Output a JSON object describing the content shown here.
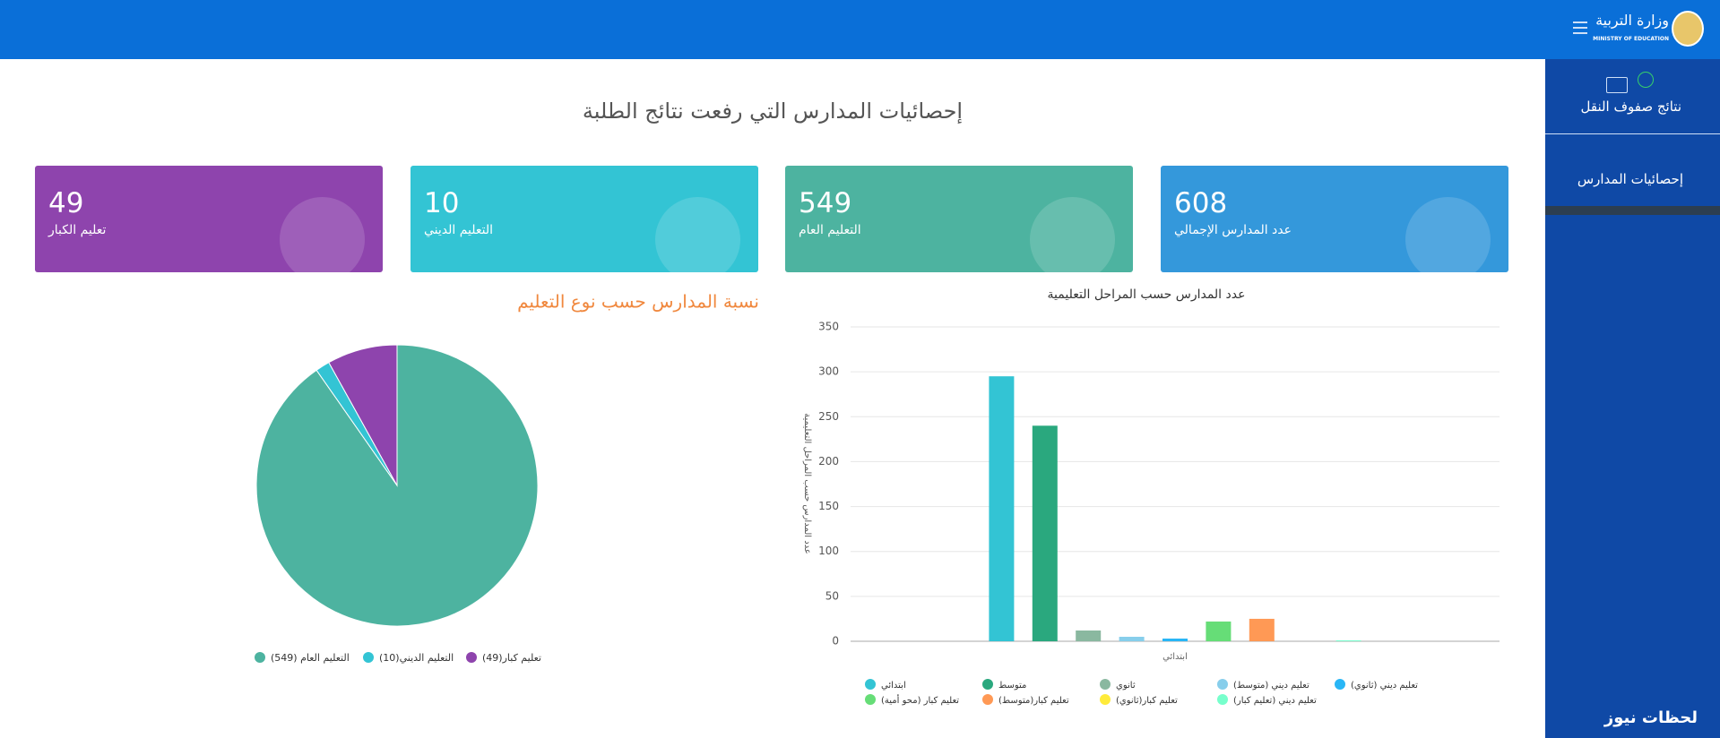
{
  "header": {
    "title": "وزارة التربية",
    "subtitle": "MINISTRY OF EDUCATION"
  },
  "sidebar": {
    "items": [
      "نتائج صفوف النقل",
      "إحصائيات المدارس"
    ]
  },
  "page_title": "إحصائيات المدارس التي رفعت نتائج الطلبة",
  "cards": [
    {
      "value": "608",
      "label": "عدد المدارس الإجمالي"
    },
    {
      "value": "549",
      "label": "التعليم العام"
    },
    {
      "value": "10",
      "label": "التعليم الديني"
    },
    {
      "value": "49",
      "label": "تعليم الكبار"
    }
  ],
  "watermark": "لحظات نيوز",
  "chart_data": [
    {
      "type": "pie",
      "title": "نسبة المدارس حسب نوع التعليم",
      "categories": [
        "التعليم العام (549)",
        "التعليم الديني(10)",
        "تعليم كبار(49)"
      ],
      "values": [
        549,
        10,
        49
      ],
      "colors": [
        "#4db3a0",
        "#33c4d4",
        "#8e44ad"
      ]
    },
    {
      "type": "bar",
      "title": "عدد المدارس حسب المراحل التعليمية",
      "y_label": "عدد المدارس حسب المراحل التعليمية",
      "categories": [
        "ابتدائي"
      ],
      "ylim": [
        0,
        350
      ],
      "yticks": [
        0,
        50,
        100,
        150,
        200,
        250,
        300,
        350
      ],
      "grid": true,
      "series": [
        {
          "name": "ابتدائي",
          "color": "#33c4d4",
          "values": [
            295
          ]
        },
        {
          "name": "متوسط",
          "color": "#2aa87e",
          "values": [
            240
          ]
        },
        {
          "name": "ثانوي",
          "color": "#8ab8a0",
          "values": [
            12
          ]
        },
        {
          "name": "تعليم ديني (متوسط)",
          "color": "#87ceeb",
          "values": [
            5
          ]
        },
        {
          "name": "تعليم ديني (ثانوي)",
          "color": "#29b6f6",
          "values": [
            3
          ]
        },
        {
          "name": "تعليم كبار (محو أمية)",
          "color": "#66dd77",
          "values": [
            22
          ]
        },
        {
          "name": "تعليم كبار(متوسط)",
          "color": "#ff9955",
          "values": [
            25
          ]
        },
        {
          "name": "تعليم كبار(ثانوي)",
          "color": "#ffeb3b",
          "values": [
            0
          ]
        },
        {
          "name": "تعليم ديني (تعليم كبار)",
          "color": "#77ffcc",
          "values": [
            1
          ]
        }
      ]
    }
  ]
}
